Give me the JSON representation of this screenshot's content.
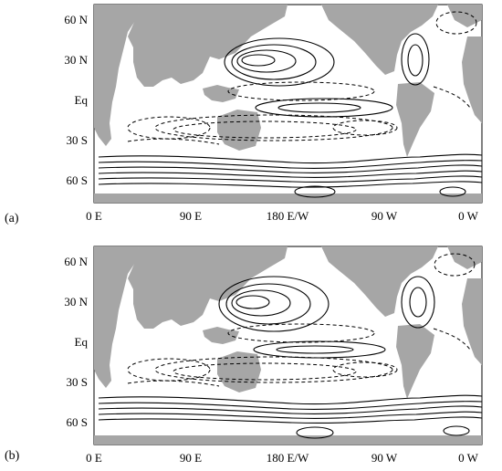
{
  "panels": [
    {
      "label": "(a)",
      "lat_labels": [
        "60 N",
        "30 N",
        "Eq",
        "30 S",
        "60 S"
      ],
      "lon_labels": [
        "0 E",
        "90 E",
        "180 E/W",
        "90 W",
        "0 W"
      ]
    },
    {
      "label": "(b)",
      "lat_labels": [
        "60 N",
        "30 N",
        "Eq",
        "30 S",
        "60 S"
      ],
      "lon_labels": [
        "0 E",
        "90 E",
        "180 E/W",
        "90 W",
        "0 W"
      ]
    }
  ],
  "colors": {
    "land": "#a6a6a6",
    "ocean": "#ffffff",
    "contour": "#000000"
  },
  "contour_styles": {
    "positive": "solid",
    "negative": "dashed"
  }
}
